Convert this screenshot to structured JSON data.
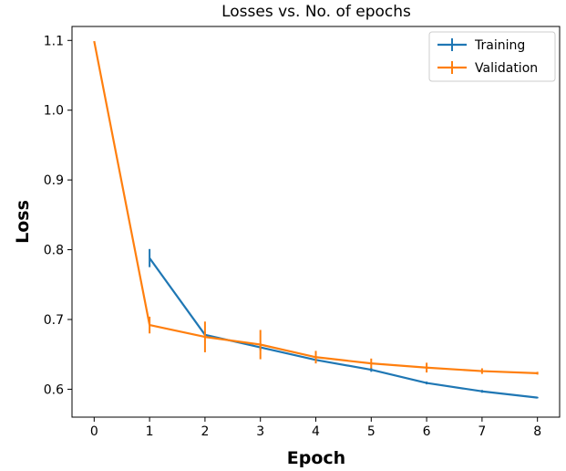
{
  "chart_data": {
    "type": "line",
    "title": "Losses vs. No. of epochs",
    "xlabel": "Epoch",
    "ylabel": "Loss",
    "xlim": [
      -0.4,
      8.4
    ],
    "ylim": [
      0.56,
      1.12
    ],
    "xticks": [
      0,
      1,
      2,
      3,
      4,
      5,
      6,
      7,
      8
    ],
    "yticks": [
      0.6,
      0.7,
      0.8,
      0.9,
      1.0,
      1.1
    ],
    "ytick_labels": [
      "0.6",
      "0.7",
      "0.8",
      "0.9",
      "1.0",
      "1.1"
    ],
    "grid": false,
    "legend": "top-right",
    "series": [
      {
        "name": "Training",
        "color": "#1f77b4",
        "x": [
          1,
          2,
          3,
          4,
          5,
          6,
          7,
          8
        ],
        "y": [
          0.788,
          0.678,
          0.66,
          0.642,
          0.628,
          0.609,
          0.597,
          0.588
        ],
        "err": [
          0.013,
          0.004,
          0.004,
          0.003,
          0.003,
          0.002,
          0.002,
          0.001
        ]
      },
      {
        "name": "Validation",
        "color": "#ff7f0e",
        "x": [
          0,
          1,
          2,
          3,
          4,
          5,
          6,
          7,
          8
        ],
        "y": [
          1.099,
          0.692,
          0.675,
          0.664,
          0.646,
          0.637,
          0.631,
          0.626,
          0.623
        ],
        "err": [
          0,
          0.012,
          0.022,
          0.021,
          0.009,
          0.007,
          0.007,
          0.004,
          0.002
        ]
      }
    ]
  }
}
